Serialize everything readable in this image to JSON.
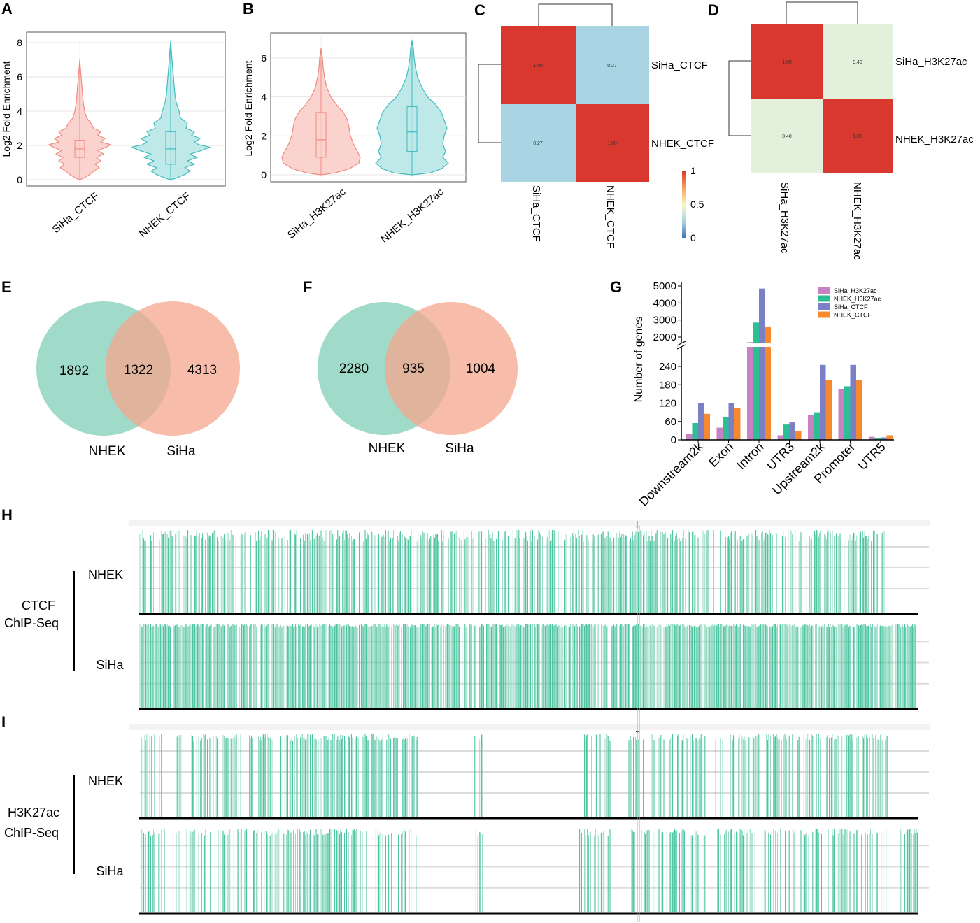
{
  "panels": {
    "A": {
      "letter": "A",
      "ylabel": "Log2 Fold Enrichment",
      "ylim": [
        0,
        8
      ],
      "yticks": [
        "0",
        "2",
        "4",
        "6",
        "8"
      ],
      "groups": [
        {
          "name": "SiHa_CTCF",
          "color": "#f08a7e",
          "fill": "#fbd3ce",
          "min": 0.0,
          "q1": 1.3,
          "median": 1.8,
          "q3": 2.3,
          "max": 7.0
        },
        {
          "name": "NHEK_CTCF",
          "color": "#3fbcbf",
          "fill": "#bfe8e8",
          "min": 0.0,
          "q1": 0.9,
          "median": 1.8,
          "q3": 2.8,
          "max": 8.1
        }
      ]
    },
    "B": {
      "letter": "B",
      "ylabel": "Log2 Fold Enrichment",
      "ylim": [
        0,
        7
      ],
      "yticks": [
        "0",
        "2",
        "4",
        "6"
      ],
      "groups": [
        {
          "name": "SiHa_H3K27ac",
          "color": "#f08a7e",
          "fill": "#fbd3ce",
          "min": 0.0,
          "q1": 0.9,
          "median": 1.8,
          "q3": 3.2,
          "max": 6.5
        },
        {
          "name": "NHEK_H3K27ac",
          "color": "#3fbcbf",
          "fill": "#bfe8e8",
          "min": 0.0,
          "q1": 1.2,
          "median": 2.2,
          "q3": 3.5,
          "max": 6.9
        }
      ]
    },
    "C": {
      "letter": "C",
      "rows": [
        "SiHa_CTCF",
        "NHEK_CTCF"
      ],
      "cols": [
        "SiHa_CTCF",
        "NHEK_CTCF"
      ],
      "values": [
        [
          "1.00",
          "0.27"
        ],
        [
          "0.27",
          "1.00"
        ]
      ],
      "colors": [
        [
          "#d9382e",
          "#a9d4e4"
        ],
        [
          "#a9d4e4",
          "#d9382e"
        ]
      ],
      "legend": {
        "max": "1",
        "mid": "0.5",
        "min": "0"
      }
    },
    "D": {
      "letter": "D",
      "rows": [
        "SiHa_H3K27ac",
        "NHEK_H3K27ac"
      ],
      "cols": [
        "SiHa_H3K27ac",
        "NHEK_H3K27ac"
      ],
      "values": [
        [
          "1.00",
          "0.40"
        ],
        [
          "0.40",
          "1.00"
        ]
      ],
      "colors": [
        [
          "#d9382e",
          "#e3f0dc"
        ],
        [
          "#e3f0dc",
          "#d9382e"
        ]
      ]
    },
    "E": {
      "letter": "E",
      "left_only": "1892",
      "overlap": "1322",
      "right_only": "4313",
      "left_label": "NHEK",
      "right_label": "SiHa",
      "left_color": "#8fd3bf",
      "right_color": "#f6a58d"
    },
    "F": {
      "letter": "F",
      "left_only": "2280",
      "overlap": "935",
      "right_only": "1004",
      "left_label": "NHEK",
      "right_label": "SiHa",
      "left_color": "#8fd3bf",
      "right_color": "#f6a58d"
    },
    "G": {
      "letter": "G",
      "ylabel": "Number of genes",
      "upper_ticks": [
        "2000",
        "3000",
        "4000",
        "5000"
      ],
      "lower_ticks": [
        "0",
        "60",
        "120",
        "180",
        "240"
      ]
    },
    "H": {
      "letter": "H",
      "title_line1": "CTCF",
      "title_line2": "ChIP-Seq",
      "track1": "NHEK",
      "track2": "SiHa",
      "arrow": "↓"
    },
    "I": {
      "letter": "I",
      "title_line1": "H3K27ac",
      "title_line2": "ChIP-Seq",
      "track1": "NHEK",
      "track2": "SiHa",
      "arrow": "↓"
    }
  },
  "chart_data": [
    {
      "type": "violin",
      "title": "A",
      "ylabel": "Log2 Fold Enrichment",
      "ylim": [
        0,
        8
      ],
      "categories": [
        "SiHa_CTCF",
        "NHEK_CTCF"
      ],
      "medians": [
        1.8,
        1.8
      ],
      "q1": [
        1.3,
        0.9
      ],
      "q3": [
        2.3,
        2.8
      ],
      "max": [
        7.0,
        8.1
      ]
    },
    {
      "type": "violin",
      "title": "B",
      "ylabel": "Log2 Fold Enrichment",
      "ylim": [
        0,
        7
      ],
      "categories": [
        "SiHa_H3K27ac",
        "NHEK_H3K27ac"
      ],
      "medians": [
        1.8,
        2.2
      ],
      "q1": [
        0.9,
        1.2
      ],
      "q3": [
        3.2,
        3.5
      ],
      "max": [
        6.5,
        6.9
      ]
    },
    {
      "type": "heatmap",
      "title": "C",
      "rows": [
        "SiHa_CTCF",
        "NHEK_CTCF"
      ],
      "cols": [
        "SiHa_CTCF",
        "NHEK_CTCF"
      ],
      "values": [
        [
          1.0,
          0.27
        ],
        [
          0.27,
          1.0
        ]
      ],
      "scale": [
        0,
        0.5,
        1
      ]
    },
    {
      "type": "heatmap",
      "title": "D",
      "rows": [
        "SiHa_H3K27ac",
        "NHEK_H3K27ac"
      ],
      "cols": [
        "SiHa_H3K27ac",
        "NHEK_H3K27ac"
      ],
      "values": [
        [
          1.0,
          0.4
        ],
        [
          0.4,
          1.0
        ]
      ]
    },
    {
      "type": "venn",
      "title": "E",
      "sets": [
        "NHEK",
        "SiHa"
      ],
      "only_left": 1892,
      "overlap": 1322,
      "only_right": 4313
    },
    {
      "type": "venn",
      "title": "F",
      "sets": [
        "NHEK",
        "SiHa"
      ],
      "only_left": 2280,
      "overlap": 935,
      "only_right": 1004
    },
    {
      "type": "bar",
      "title": "G",
      "ylabel": "Number of genes",
      "axis_break": [
        270,
        1800
      ],
      "categories": [
        "Downstream2k",
        "Exon",
        "Intron",
        "UTR3",
        "Upstream2k",
        "Promoter",
        "UTR5"
      ],
      "series": [
        {
          "name": "SiHa_H3K27ac",
          "color": "#c882c4",
          "values": [
            20,
            40,
            1700,
            15,
            80,
            165,
            10
          ]
        },
        {
          "name": "NHEK_H3K27ac",
          "color": "#2dbf94",
          "values": [
            55,
            75,
            2850,
            50,
            90,
            175,
            5
          ]
        },
        {
          "name": "SiHa_CTCF",
          "color": "#7b7fc6",
          "values": [
            120,
            120,
            4850,
            57,
            245,
            245,
            8
          ]
        },
        {
          "name": "NHEK_CTCF",
          "color": "#f6882d",
          "values": [
            85,
            105,
            2600,
            28,
            195,
            195,
            15
          ]
        }
      ]
    }
  ]
}
